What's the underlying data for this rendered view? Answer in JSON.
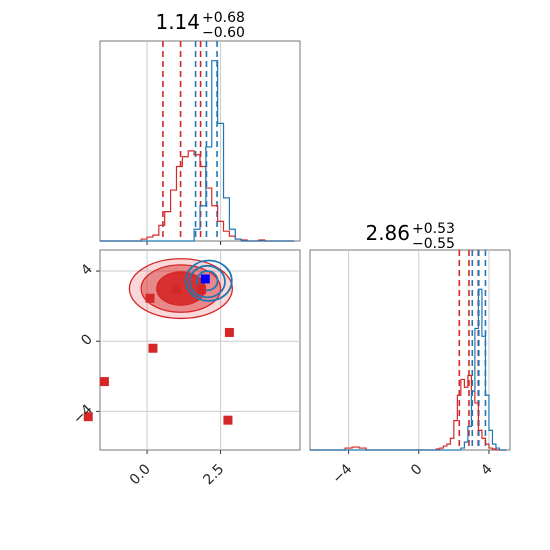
{
  "chart_data": {
    "type": "corner",
    "colors": {
      "primary": "#d62728",
      "secondary": "#1f77b4",
      "truth_point": "#0000ff",
      "grid": "#cccccc"
    },
    "panels": [
      {
        "id": "hist-x",
        "type": "histogram",
        "title_value": "1.14",
        "title_upper": "+0.68",
        "title_lower": "−0.60",
        "xlim": [
          -1.6,
          5.2
        ],
        "ymax": 1.0,
        "grid_x": [
          0.0,
          2.5
        ],
        "series": [
          {
            "color": "#d62728",
            "bin_edges": [
              -1.6,
              -1.4,
              -1.2,
              -1.0,
              -0.8,
              -0.6,
              -0.4,
              -0.2,
              0.0,
              0.2,
              0.4,
              0.6,
              0.8,
              1.0,
              1.2,
              1.4,
              1.6,
              1.8,
              2.0,
              2.2,
              2.4,
              2.6,
              2.8,
              3.0,
              3.2,
              3.4,
              3.6,
              3.8,
              4.0,
              4.2,
              4.4,
              4.6,
              4.8,
              5.0
            ],
            "counts": [
              0,
              0,
              0,
              0,
              0,
              0,
              0,
              0.01,
              0.02,
              0.03,
              0.08,
              0.15,
              0.26,
              0.38,
              0.43,
              0.46,
              0.44,
              0.38,
              0.27,
              0.18,
              0.1,
              0.05,
              0.025,
              0.01,
              0.005,
              0,
              0,
              0.005,
              0,
              0,
              0,
              0,
              0
            ]
          },
          {
            "color": "#1f77b4",
            "bin_edges": [
              -1.6,
              -1.4,
              -1.2,
              -1.0,
              -0.8,
              -0.6,
              -0.4,
              -0.2,
              0.0,
              0.2,
              0.4,
              0.6,
              0.8,
              1.0,
              1.2,
              1.4,
              1.6,
              1.8,
              2.0,
              2.2,
              2.4,
              2.6,
              2.8,
              3.0,
              3.2,
              3.4,
              3.6,
              3.8,
              4.0,
              4.2,
              4.4,
              4.6,
              4.8,
              5.0
            ],
            "counts": [
              0,
              0,
              0,
              0,
              0,
              0,
              0,
              0,
              0,
              0,
              0,
              0,
              0,
              0,
              0,
              0,
              0.06,
              0.18,
              0.48,
              0.92,
              0.6,
              0.22,
              0.06,
              0.01,
              0,
              0,
              0,
              0,
              0,
              0,
              0,
              0,
              0
            ]
          }
        ],
        "quantile_lines": [
          {
            "x": 0.54,
            "color": "#d62728"
          },
          {
            "x": 1.14,
            "color": "#d62728"
          },
          {
            "x": 1.82,
            "color": "#d62728"
          },
          {
            "x": 1.65,
            "color": "#1f77b4"
          },
          {
            "x": 2.02,
            "color": "#1f77b4"
          },
          {
            "x": 2.38,
            "color": "#1f77b4"
          }
        ]
      },
      {
        "id": "hist-y",
        "type": "histogram",
        "title_value": "2.86",
        "title_upper": "+0.53",
        "title_lower": "−0.55",
        "xlim": [
          -6.2,
          5.2
        ],
        "ymax": 1.0,
        "grid_x": [
          -4,
          0,
          4
        ],
        "tick_labels": [
          "−4",
          "0",
          "4"
        ],
        "series": [
          {
            "color": "#d62728",
            "bin_edges": [
              -6.2,
              -5.8,
              -5.4,
              -5.0,
              -4.6,
              -4.2,
              -3.8,
              -3.4,
              -3.0,
              -2.6,
              -2.2,
              -1.8,
              -1.4,
              -1.0,
              -0.6,
              -0.2,
              0.2,
              0.6,
              1.0,
              1.2,
              1.4,
              1.6,
              1.8,
              2.0,
              2.2,
              2.4,
              2.6,
              2.8,
              3.0,
              3.2,
              3.4,
              3.6,
              3.8,
              4.0,
              4.2,
              4.4,
              4.6,
              4.8,
              5.0
            ],
            "counts": [
              0,
              0,
              0,
              0,
              0,
              0.01,
              0.015,
              0.01,
              0,
              0,
              0,
              0,
              0,
              0,
              0,
              0,
              0,
              0,
              0.005,
              0.01,
              0.02,
              0.03,
              0.06,
              0.15,
              0.28,
              0.36,
              0.32,
              0.38,
              0.3,
              0.24,
              0.1,
              0.06,
              0.03,
              0.01,
              0.005,
              0,
              0,
              0
            ]
          },
          {
            "color": "#1f77b4",
            "bin_edges": [
              -6.2,
              -5.8,
              -5.4,
              -5.0,
              -4.6,
              -4.2,
              -3.8,
              -3.4,
              -3.0,
              -2.6,
              -2.2,
              -1.8,
              -1.4,
              -1.0,
              -0.6,
              -0.2,
              0.2,
              0.6,
              1.0,
              1.2,
              1.4,
              1.6,
              1.8,
              2.0,
              2.2,
              2.4,
              2.6,
              2.8,
              3.0,
              3.2,
              3.4,
              3.6,
              3.8,
              4.0,
              4.2,
              4.4,
              4.6,
              4.8,
              5.0
            ],
            "counts": [
              0,
              0,
              0,
              0,
              0,
              0,
              0,
              0,
              0,
              0,
              0,
              0,
              0,
              0,
              0,
              0,
              0,
              0,
              0,
              0,
              0,
              0,
              0,
              0,
              0,
              0.01,
              0.04,
              0.12,
              0.3,
              0.62,
              0.82,
              0.58,
              0.28,
              0.1,
              0.03,
              0.01,
              0,
              0
            ]
          }
        ],
        "quantile_lines": [
          {
            "x": 2.31,
            "color": "#d62728"
          },
          {
            "x": 2.86,
            "color": "#d62728"
          },
          {
            "x": 3.39,
            "color": "#d62728"
          },
          {
            "x": 3.05,
            "color": "#1f77b4"
          },
          {
            "x": 3.42,
            "color": "#1f77b4"
          },
          {
            "x": 3.8,
            "color": "#1f77b4"
          }
        ]
      },
      {
        "id": "joint",
        "type": "scatter-contour",
        "xlim": [
          -1.6,
          5.2
        ],
        "ylim": [
          -6.2,
          5.2
        ],
        "grid_x": [
          0.0,
          2.5
        ],
        "grid_y": [
          -4,
          0,
          4
        ],
        "x_tick_labels": [
          "0.0",
          "2.5"
        ],
        "y_tick_labels": [
          "−4",
          "0",
          "4"
        ],
        "red_contours": [
          {
            "cx": 1.15,
            "cy": 3.0,
            "rx": 0.82,
            "ry": 0.95,
            "fill": "#d62728",
            "opacity": 0.9
          },
          {
            "cx": 1.15,
            "cy": 3.0,
            "rx": 1.35,
            "ry": 1.35,
            "fill": "#d62728",
            "opacity": 0.45
          },
          {
            "cx": 1.15,
            "cy": 3.0,
            "rx": 1.75,
            "ry": 1.7,
            "fill": "#d62728",
            "opacity": 0.18
          }
        ],
        "blue_contours": [
          {
            "cx": 2.05,
            "cy": 3.45,
            "rx": 0.35,
            "ry": 0.55
          },
          {
            "cx": 2.05,
            "cy": 3.4,
            "rx": 0.6,
            "ry": 0.9
          },
          {
            "cx": 2.1,
            "cy": 3.45,
            "rx": 0.78,
            "ry": 1.15
          }
        ],
        "markers_red": [
          {
            "x": 0.1,
            "y": 2.45
          },
          {
            "x": 1.0,
            "y": 2.95
          },
          {
            "x": 1.85,
            "y": 2.95
          },
          {
            "x": 0.2,
            "y": -0.4
          },
          {
            "x": 2.8,
            "y": 0.5
          },
          {
            "x": -1.45,
            "y": -2.3
          },
          {
            "x": -2.0,
            "y": -4.3
          },
          {
            "x": 2.75,
            "y": -4.5
          }
        ],
        "marker_truth": {
          "x": 1.98,
          "y": 3.55
        }
      }
    ]
  }
}
